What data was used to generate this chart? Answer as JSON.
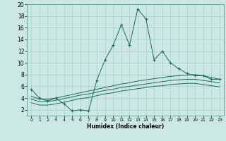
{
  "xlabel": "Humidex (Indice chaleur)",
  "bg_color": "#cce8e4",
  "line_color": "#1a6b5a",
  "grid_color": "#aaccc8",
  "xlim": [
    -0.5,
    23.5
  ],
  "ylim": [
    1,
    20
  ],
  "xticks": [
    0,
    1,
    2,
    3,
    4,
    5,
    6,
    7,
    8,
    9,
    10,
    11,
    12,
    13,
    14,
    15,
    16,
    17,
    18,
    19,
    20,
    21,
    22,
    23
  ],
  "yticks": [
    2,
    4,
    6,
    8,
    10,
    12,
    14,
    16,
    18,
    20
  ],
  "series": {
    "main": {
      "x": [
        0,
        1,
        2,
        3,
        4,
        5,
        6,
        7,
        8,
        9,
        10,
        11,
        12,
        13,
        14,
        15,
        16,
        17,
        18,
        19,
        20,
        21,
        22,
        23
      ],
      "y": [
        5.5,
        4.0,
        3.5,
        4.0,
        3.0,
        1.8,
        2.0,
        1.8,
        7.0,
        10.5,
        13.0,
        16.5,
        13.0,
        19.2,
        17.5,
        10.5,
        12.0,
        10.0,
        9.0,
        8.2,
        7.8,
        7.8,
        7.2,
        7.2
      ]
    },
    "line1": {
      "x": [
        0,
        1,
        2,
        3,
        4,
        5,
        6,
        7,
        8,
        9,
        10,
        11,
        12,
        13,
        14,
        15,
        16,
        17,
        18,
        19,
        20,
        21,
        22,
        23
      ],
      "y": [
        4.3,
        3.8,
        3.8,
        4.0,
        4.3,
        4.6,
        4.9,
        5.2,
        5.5,
        5.8,
        6.1,
        6.4,
        6.6,
        6.9,
        7.1,
        7.3,
        7.5,
        7.7,
        7.8,
        7.9,
        8.0,
        7.8,
        7.5,
        7.2
      ]
    },
    "line2": {
      "x": [
        0,
        1,
        2,
        3,
        4,
        5,
        6,
        7,
        8,
        9,
        10,
        11,
        12,
        13,
        14,
        15,
        16,
        17,
        18,
        19,
        20,
        21,
        22,
        23
      ],
      "y": [
        3.8,
        3.4,
        3.4,
        3.6,
        3.9,
        4.2,
        4.5,
        4.7,
        5.0,
        5.3,
        5.5,
        5.8,
        6.0,
        6.2,
        6.4,
        6.6,
        6.8,
        7.0,
        7.1,
        7.2,
        7.2,
        7.0,
        6.8,
        6.6
      ]
    },
    "line3": {
      "x": [
        0,
        1,
        2,
        3,
        4,
        5,
        6,
        7,
        8,
        9,
        10,
        11,
        12,
        13,
        14,
        15,
        16,
        17,
        18,
        19,
        20,
        21,
        22,
        23
      ],
      "y": [
        3.2,
        2.8,
        2.8,
        3.0,
        3.3,
        3.6,
        3.9,
        4.1,
        4.4,
        4.7,
        4.9,
        5.2,
        5.4,
        5.6,
        5.8,
        6.0,
        6.1,
        6.3,
        6.4,
        6.5,
        6.5,
        6.3,
        6.1,
        5.9
      ]
    }
  }
}
